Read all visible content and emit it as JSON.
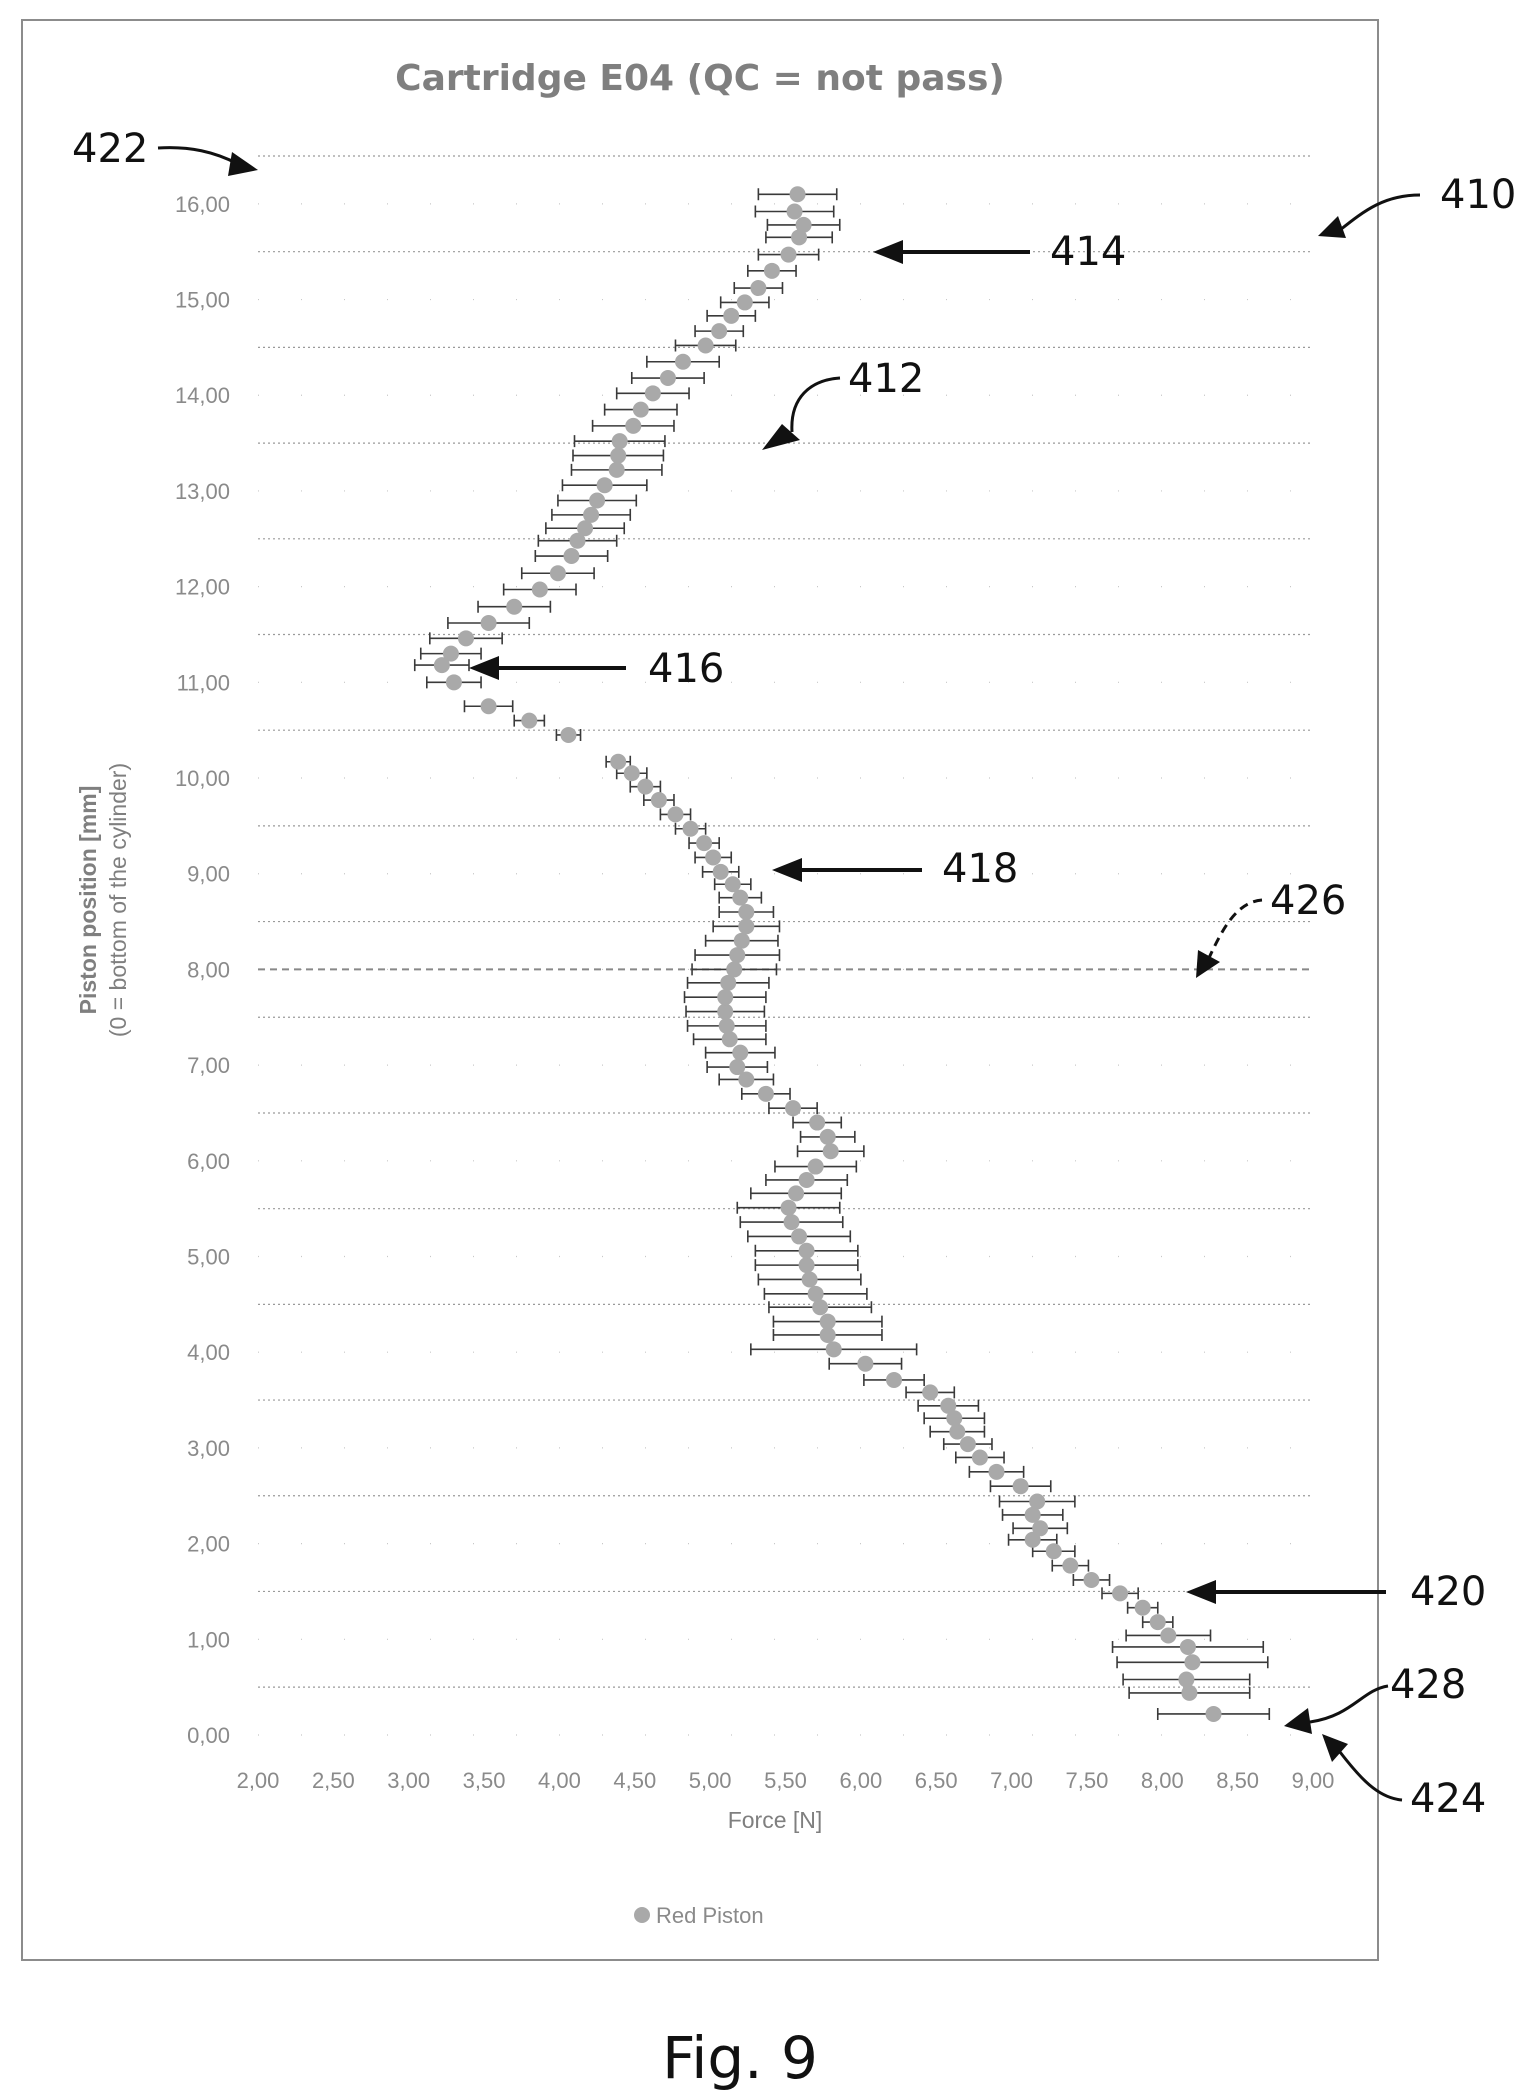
{
  "chart_data": {
    "type": "scatter",
    "title": "Cartridge E04 (QC = not pass)",
    "xlabel": "Force [N]",
    "ylabel": "Piston position [mm]",
    "ylabel_sub": "(0 = bottom of the cylinder)",
    "xlim": [
      2,
      9
    ],
    "ylim": [
      0,
      16.5
    ],
    "x_ticks": [
      "2,00",
      "2,50",
      "3,00",
      "3,50",
      "4,00",
      "4,50",
      "5,00",
      "5,50",
      "6,00",
      "6,50",
      "7,00",
      "7,50",
      "8,00",
      "8,50",
      "9,00"
    ],
    "y_ticks": [
      "0,00",
      "1,00",
      "2,00",
      "3,00",
      "4,00",
      "5,00",
      "6,00",
      "7,00",
      "8,00",
      "9,00",
      "10,00",
      "11,00",
      "12,00",
      "13,00",
      "14,00",
      "15,00",
      "16,00"
    ],
    "legend_position": "bottom",
    "grid": true,
    "reference_line_y": 8,
    "series": [
      {
        "name": "Red Piston",
        "color": "#a9a9a9",
        "points": [
          [
            8.34,
            0.22,
            0.37
          ],
          [
            8.18,
            0.44,
            0.4
          ],
          [
            8.16,
            0.58,
            0.42
          ],
          [
            8.2,
            0.76,
            0.5
          ],
          [
            8.17,
            0.92,
            0.5
          ],
          [
            8.04,
            1.04,
            0.28
          ],
          [
            7.97,
            1.18,
            0.1
          ],
          [
            7.87,
            1.33,
            0.1
          ],
          [
            7.72,
            1.48,
            0.12
          ],
          [
            7.53,
            1.62,
            0.12
          ],
          [
            7.39,
            1.77,
            0.12
          ],
          [
            7.28,
            1.92,
            0.14
          ],
          [
            7.14,
            2.04,
            0.16
          ],
          [
            7.19,
            2.16,
            0.18
          ],
          [
            7.14,
            2.3,
            0.2
          ],
          [
            7.17,
            2.44,
            0.25
          ],
          [
            7.06,
            2.6,
            0.2
          ],
          [
            6.9,
            2.75,
            0.18
          ],
          [
            6.79,
            2.9,
            0.16
          ],
          [
            6.71,
            3.04,
            0.16
          ],
          [
            6.64,
            3.17,
            0.18
          ],
          [
            6.62,
            3.31,
            0.2
          ],
          [
            6.58,
            3.44,
            0.2
          ],
          [
            6.46,
            3.58,
            0.16
          ],
          [
            6.22,
            3.71,
            0.2
          ],
          [
            6.03,
            3.88,
            0.24
          ],
          [
            5.82,
            4.03,
            0.55
          ],
          [
            5.78,
            4.18,
            0.36
          ],
          [
            5.78,
            4.32,
            0.36
          ],
          [
            5.73,
            4.47,
            0.34
          ],
          [
            5.7,
            4.61,
            0.34
          ],
          [
            5.66,
            4.76,
            0.34
          ],
          [
            5.64,
            4.91,
            0.34
          ],
          [
            5.64,
            5.06,
            0.34
          ],
          [
            5.59,
            5.21,
            0.34
          ],
          [
            5.54,
            5.36,
            0.34
          ],
          [
            5.52,
            5.51,
            0.34
          ],
          [
            5.57,
            5.66,
            0.3
          ],
          [
            5.64,
            5.8,
            0.27
          ],
          [
            5.7,
            5.94,
            0.27
          ],
          [
            5.8,
            6.1,
            0.22
          ],
          [
            5.78,
            6.25,
            0.18
          ],
          [
            5.71,
            6.4,
            0.16
          ],
          [
            5.55,
            6.55,
            0.16
          ],
          [
            5.37,
            6.7,
            0.16
          ],
          [
            5.24,
            6.85,
            0.18
          ],
          [
            5.18,
            6.98,
            0.2
          ],
          [
            5.2,
            7.13,
            0.23
          ],
          [
            5.13,
            7.27,
            0.24
          ],
          [
            5.11,
            7.41,
            0.26
          ],
          [
            5.1,
            7.56,
            0.26
          ],
          [
            5.1,
            7.71,
            0.27
          ],
          [
            5.12,
            7.86,
            0.27
          ],
          [
            5.16,
            8.0,
            0.28
          ],
          [
            5.18,
            8.15,
            0.28
          ],
          [
            5.21,
            8.3,
            0.24
          ],
          [
            5.24,
            8.45,
            0.22
          ],
          [
            5.24,
            8.6,
            0.18
          ],
          [
            5.2,
            8.75,
            0.14
          ],
          [
            5.15,
            8.89,
            0.12
          ],
          [
            5.07,
            9.02,
            0.12
          ],
          [
            5.02,
            9.17,
            0.12
          ],
          [
            4.96,
            9.32,
            0.1
          ],
          [
            4.87,
            9.47,
            0.1
          ],
          [
            4.77,
            9.62,
            0.1
          ],
          [
            4.66,
            9.77,
            0.1
          ],
          [
            4.57,
            9.91,
            0.1
          ],
          [
            4.48,
            10.05,
            0.1
          ],
          [
            4.39,
            10.17,
            0.08
          ],
          [
            4.06,
            10.45,
            0.08
          ],
          [
            3.8,
            10.6,
            0.1
          ],
          [
            3.53,
            10.75,
            0.16
          ],
          [
            3.3,
            11.0,
            0.18
          ],
          [
            3.22,
            11.18,
            0.18
          ],
          [
            3.28,
            11.3,
            0.2
          ],
          [
            3.38,
            11.46,
            0.24
          ],
          [
            3.53,
            11.62,
            0.27
          ],
          [
            3.7,
            11.79,
            0.24
          ],
          [
            3.87,
            11.97,
            0.24
          ],
          [
            3.99,
            12.14,
            0.24
          ],
          [
            4.08,
            12.32,
            0.24
          ],
          [
            4.12,
            12.48,
            0.26
          ],
          [
            4.17,
            12.61,
            0.26
          ],
          [
            4.21,
            12.75,
            0.26
          ],
          [
            4.25,
            12.9,
            0.26
          ],
          [
            4.3,
            13.06,
            0.28
          ],
          [
            4.38,
            13.22,
            0.3
          ],
          [
            4.39,
            13.37,
            0.3
          ],
          [
            4.4,
            13.52,
            0.3
          ],
          [
            4.49,
            13.68,
            0.27
          ],
          [
            4.54,
            13.85,
            0.24
          ],
          [
            4.62,
            14.02,
            0.24
          ],
          [
            4.72,
            14.18,
            0.24
          ],
          [
            4.82,
            14.35,
            0.24
          ],
          [
            4.97,
            14.52,
            0.2
          ],
          [
            5.06,
            14.67,
            0.16
          ],
          [
            5.14,
            14.83,
            0.16
          ],
          [
            5.23,
            14.97,
            0.16
          ],
          [
            5.32,
            15.12,
            0.16
          ],
          [
            5.41,
            15.3,
            0.16
          ],
          [
            5.52,
            15.47,
            0.2
          ],
          [
            5.59,
            15.65,
            0.22
          ],
          [
            5.62,
            15.78,
            0.24
          ],
          [
            5.56,
            15.92,
            0.26
          ],
          [
            5.58,
            16.1,
            0.26
          ]
        ]
      }
    ]
  },
  "annotations": {
    "ref_410": "410",
    "ref_412": "412",
    "ref_414": "414",
    "ref_416": "416",
    "ref_418": "418",
    "ref_420": "420",
    "ref_422": "422",
    "ref_424": "424",
    "ref_426": "426",
    "ref_428": "428"
  },
  "figure_label": "Fig. 9"
}
